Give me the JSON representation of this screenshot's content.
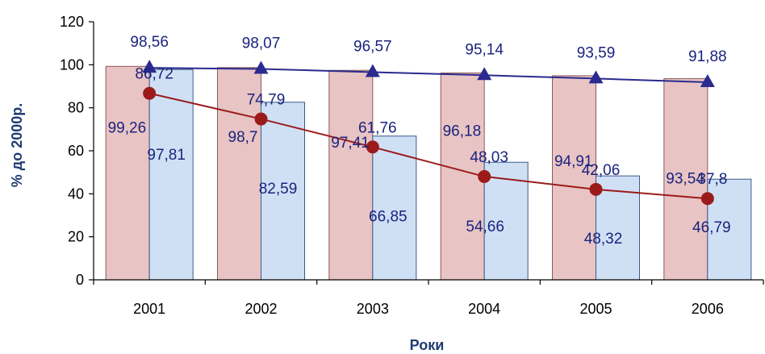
{
  "chart_data": {
    "type": "bar",
    "title": "",
    "xlabel": "Роки",
    "ylabel": "% до 2000р.",
    "ylim": [
      0,
      120
    ],
    "yticks": [
      "0",
      "20",
      "40",
      "60",
      "80",
      "100",
      "120"
    ],
    "categories": [
      "2001",
      "2002",
      "2003",
      "2004",
      "2005",
      "2006"
    ],
    "grid": false,
    "legend": "none",
    "series": [
      {
        "type": "bar",
        "color": "#e8c4c4",
        "values": [
          99.26,
          98.7,
          97.41,
          96.18,
          94.91,
          93.54
        ],
        "labels": [
          "99,26",
          "98,7",
          "97,41",
          "96,18",
          "94,91",
          "93,54"
        ]
      },
      {
        "type": "bar",
        "color": "#cfe0f5",
        "values": [
          97.81,
          82.59,
          66.85,
          54.66,
          48.32,
          46.79
        ],
        "labels": [
          "97,81",
          "82,59",
          "66,85",
          "54,66",
          "48,32",
          "46,79"
        ]
      },
      {
        "type": "line",
        "marker": "triangle",
        "color": "#2a2a8f",
        "values": [
          98.56,
          98.07,
          96.57,
          95.14,
          93.59,
          91.88
        ],
        "labels": [
          "98,56",
          "98,07",
          "96,57",
          "95,14",
          "93,59",
          "91,88"
        ]
      },
      {
        "type": "line",
        "marker": "circle",
        "color": "#9b1b1b",
        "values": [
          86.72,
          74.79,
          61.76,
          48.03,
          42.06,
          37.8
        ],
        "labels": [
          "86,72",
          "74,79",
          "61,76",
          "48,03",
          "42,06",
          "37,8"
        ]
      }
    ]
  }
}
